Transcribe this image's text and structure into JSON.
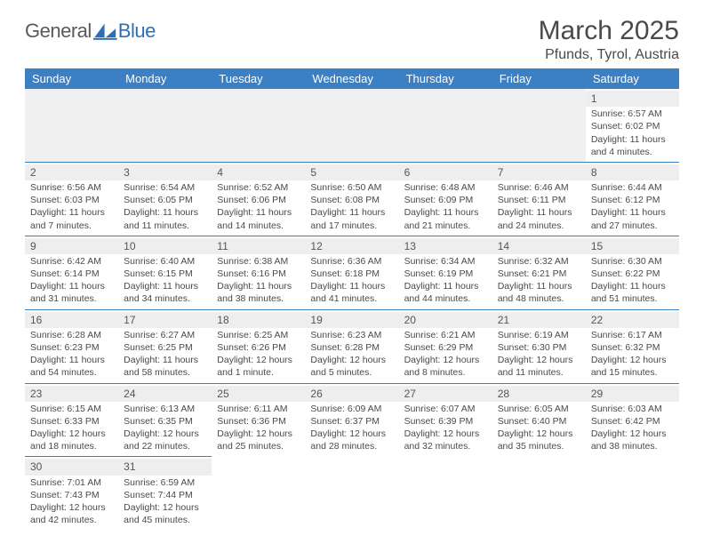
{
  "brand": {
    "part1": "General",
    "part2": "Blue"
  },
  "title": "March 2025",
  "subtitle": "Pfunds, Tyrol, Austria",
  "colors": {
    "header_bg": "#3b7fc4",
    "header_fg": "#ffffff",
    "cell_border": "#3b7fc4",
    "daynum_bg": "#eeeeee",
    "text": "#4a4a4a",
    "brand_blue": "#2d6fb5",
    "brand_grey": "#5a5a5a"
  },
  "typography": {
    "title_fontsize": 30,
    "subtitle_fontsize": 16,
    "header_fontsize": 13,
    "daynum_fontsize": 12,
    "cell_fontsize": 10.5
  },
  "headers": [
    "Sunday",
    "Monday",
    "Tuesday",
    "Wednesday",
    "Thursday",
    "Friday",
    "Saturday"
  ],
  "weeks": [
    [
      null,
      null,
      null,
      null,
      null,
      null,
      {
        "n": "1",
        "sr": "Sunrise: 6:57 AM",
        "ss": "Sunset: 6:02 PM",
        "d1": "Daylight: 11 hours",
        "d2": "and 4 minutes."
      }
    ],
    [
      {
        "n": "2",
        "sr": "Sunrise: 6:56 AM",
        "ss": "Sunset: 6:03 PM",
        "d1": "Daylight: 11 hours",
        "d2": "and 7 minutes."
      },
      {
        "n": "3",
        "sr": "Sunrise: 6:54 AM",
        "ss": "Sunset: 6:05 PM",
        "d1": "Daylight: 11 hours",
        "d2": "and 11 minutes."
      },
      {
        "n": "4",
        "sr": "Sunrise: 6:52 AM",
        "ss": "Sunset: 6:06 PM",
        "d1": "Daylight: 11 hours",
        "d2": "and 14 minutes."
      },
      {
        "n": "5",
        "sr": "Sunrise: 6:50 AM",
        "ss": "Sunset: 6:08 PM",
        "d1": "Daylight: 11 hours",
        "d2": "and 17 minutes."
      },
      {
        "n": "6",
        "sr": "Sunrise: 6:48 AM",
        "ss": "Sunset: 6:09 PM",
        "d1": "Daylight: 11 hours",
        "d2": "and 21 minutes."
      },
      {
        "n": "7",
        "sr": "Sunrise: 6:46 AM",
        "ss": "Sunset: 6:11 PM",
        "d1": "Daylight: 11 hours",
        "d2": "and 24 minutes."
      },
      {
        "n": "8",
        "sr": "Sunrise: 6:44 AM",
        "ss": "Sunset: 6:12 PM",
        "d1": "Daylight: 11 hours",
        "d2": "and 27 minutes."
      }
    ],
    [
      {
        "n": "9",
        "sr": "Sunrise: 6:42 AM",
        "ss": "Sunset: 6:14 PM",
        "d1": "Daylight: 11 hours",
        "d2": "and 31 minutes."
      },
      {
        "n": "10",
        "sr": "Sunrise: 6:40 AM",
        "ss": "Sunset: 6:15 PM",
        "d1": "Daylight: 11 hours",
        "d2": "and 34 minutes."
      },
      {
        "n": "11",
        "sr": "Sunrise: 6:38 AM",
        "ss": "Sunset: 6:16 PM",
        "d1": "Daylight: 11 hours",
        "d2": "and 38 minutes."
      },
      {
        "n": "12",
        "sr": "Sunrise: 6:36 AM",
        "ss": "Sunset: 6:18 PM",
        "d1": "Daylight: 11 hours",
        "d2": "and 41 minutes."
      },
      {
        "n": "13",
        "sr": "Sunrise: 6:34 AM",
        "ss": "Sunset: 6:19 PM",
        "d1": "Daylight: 11 hours",
        "d2": "and 44 minutes."
      },
      {
        "n": "14",
        "sr": "Sunrise: 6:32 AM",
        "ss": "Sunset: 6:21 PM",
        "d1": "Daylight: 11 hours",
        "d2": "and 48 minutes."
      },
      {
        "n": "15",
        "sr": "Sunrise: 6:30 AM",
        "ss": "Sunset: 6:22 PM",
        "d1": "Daylight: 11 hours",
        "d2": "and 51 minutes."
      }
    ],
    [
      {
        "n": "16",
        "sr": "Sunrise: 6:28 AM",
        "ss": "Sunset: 6:23 PM",
        "d1": "Daylight: 11 hours",
        "d2": "and 54 minutes."
      },
      {
        "n": "17",
        "sr": "Sunrise: 6:27 AM",
        "ss": "Sunset: 6:25 PM",
        "d1": "Daylight: 11 hours",
        "d2": "and 58 minutes."
      },
      {
        "n": "18",
        "sr": "Sunrise: 6:25 AM",
        "ss": "Sunset: 6:26 PM",
        "d1": "Daylight: 12 hours",
        "d2": "and 1 minute."
      },
      {
        "n": "19",
        "sr": "Sunrise: 6:23 AM",
        "ss": "Sunset: 6:28 PM",
        "d1": "Daylight: 12 hours",
        "d2": "and 5 minutes."
      },
      {
        "n": "20",
        "sr": "Sunrise: 6:21 AM",
        "ss": "Sunset: 6:29 PM",
        "d1": "Daylight: 12 hours",
        "d2": "and 8 minutes."
      },
      {
        "n": "21",
        "sr": "Sunrise: 6:19 AM",
        "ss": "Sunset: 6:30 PM",
        "d1": "Daylight: 12 hours",
        "d2": "and 11 minutes."
      },
      {
        "n": "22",
        "sr": "Sunrise: 6:17 AM",
        "ss": "Sunset: 6:32 PM",
        "d1": "Daylight: 12 hours",
        "d2": "and 15 minutes."
      }
    ],
    [
      {
        "n": "23",
        "sr": "Sunrise: 6:15 AM",
        "ss": "Sunset: 6:33 PM",
        "d1": "Daylight: 12 hours",
        "d2": "and 18 minutes."
      },
      {
        "n": "24",
        "sr": "Sunrise: 6:13 AM",
        "ss": "Sunset: 6:35 PM",
        "d1": "Daylight: 12 hours",
        "d2": "and 22 minutes."
      },
      {
        "n": "25",
        "sr": "Sunrise: 6:11 AM",
        "ss": "Sunset: 6:36 PM",
        "d1": "Daylight: 12 hours",
        "d2": "and 25 minutes."
      },
      {
        "n": "26",
        "sr": "Sunrise: 6:09 AM",
        "ss": "Sunset: 6:37 PM",
        "d1": "Daylight: 12 hours",
        "d2": "and 28 minutes."
      },
      {
        "n": "27",
        "sr": "Sunrise: 6:07 AM",
        "ss": "Sunset: 6:39 PM",
        "d1": "Daylight: 12 hours",
        "d2": "and 32 minutes."
      },
      {
        "n": "28",
        "sr": "Sunrise: 6:05 AM",
        "ss": "Sunset: 6:40 PM",
        "d1": "Daylight: 12 hours",
        "d2": "and 35 minutes."
      },
      {
        "n": "29",
        "sr": "Sunrise: 6:03 AM",
        "ss": "Sunset: 6:42 PM",
        "d1": "Daylight: 12 hours",
        "d2": "and 38 minutes."
      }
    ],
    [
      {
        "n": "30",
        "sr": "Sunrise: 7:01 AM",
        "ss": "Sunset: 7:43 PM",
        "d1": "Daylight: 12 hours",
        "d2": "and 42 minutes."
      },
      {
        "n": "31",
        "sr": "Sunrise: 6:59 AM",
        "ss": "Sunset: 7:44 PM",
        "d1": "Daylight: 12 hours",
        "d2": "and 45 minutes."
      },
      null,
      null,
      null,
      null,
      null
    ]
  ]
}
